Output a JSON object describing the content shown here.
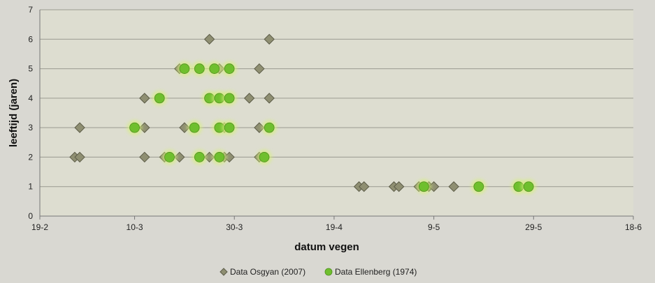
{
  "chart_data": {
    "type": "scatter",
    "title": "",
    "xlabel": "datum vegen",
    "ylabel": "leeftijd (jaren)",
    "x_ticks": [
      "19-2",
      "10-3",
      "30-3",
      "19-4",
      "9-5",
      "29-5",
      "18-6"
    ],
    "xlim_day_of_year": [
      50,
      169
    ],
    "ylim": [
      0,
      7
    ],
    "y_ticks": [
      0,
      1,
      2,
      3,
      4,
      5,
      6,
      7
    ],
    "grid": true,
    "legend_position": "bottom-center",
    "series": [
      {
        "name": "Data Osgyan (2007)",
        "marker": "diamond",
        "color": "#8f8f72",
        "points": [
          {
            "x": "26-2",
            "y": 2
          },
          {
            "x": "27-2",
            "y": 2
          },
          {
            "x": "27-2",
            "y": 3
          },
          {
            "x": "12-3",
            "y": 2
          },
          {
            "x": "12-3",
            "y": 3
          },
          {
            "x": "12-3",
            "y": 4
          },
          {
            "x": "16-3",
            "y": 2
          },
          {
            "x": "19-3",
            "y": 2
          },
          {
            "x": "19-3",
            "y": 5
          },
          {
            "x": "20-3",
            "y": 3
          },
          {
            "x": "25-3",
            "y": 6
          },
          {
            "x": "25-3",
            "y": 2
          },
          {
            "x": "27-3",
            "y": 5
          },
          {
            "x": "27-3",
            "y": 2
          },
          {
            "x": "28-3",
            "y": 2
          },
          {
            "x": "28-3",
            "y": 3
          },
          {
            "x": "29-3",
            "y": 2
          },
          {
            "x": "2-4",
            "y": 4
          },
          {
            "x": "4-4",
            "y": 5
          },
          {
            "x": "4-4",
            "y": 3
          },
          {
            "x": "4-4",
            "y": 2
          },
          {
            "x": "6-4",
            "y": 6
          },
          {
            "x": "6-4",
            "y": 4
          },
          {
            "x": "24-4",
            "y": 1
          },
          {
            "x": "25-4",
            "y": 1
          },
          {
            "x": "1-5",
            "y": 1
          },
          {
            "x": "2-5",
            "y": 1
          },
          {
            "x": "6-5",
            "y": 1
          },
          {
            "x": "7-5",
            "y": 1
          },
          {
            "x": "8-5",
            "y": 1
          },
          {
            "x": "9-5",
            "y": 1
          },
          {
            "x": "13-5",
            "y": 1
          }
        ]
      },
      {
        "name": "Data Ellenberg (1974)",
        "marker": "circle",
        "color": "#6fbf2e",
        "points": [
          {
            "x": "10-3",
            "y": 3
          },
          {
            "x": "15-3",
            "y": 4
          },
          {
            "x": "17-3",
            "y": 2
          },
          {
            "x": "20-3",
            "y": 5
          },
          {
            "x": "22-3",
            "y": 3
          },
          {
            "x": "23-3",
            "y": 5
          },
          {
            "x": "23-3",
            "y": 2
          },
          {
            "x": "25-3",
            "y": 4
          },
          {
            "x": "26-3",
            "y": 5
          },
          {
            "x": "27-3",
            "y": 4
          },
          {
            "x": "27-3",
            "y": 3
          },
          {
            "x": "27-3",
            "y": 2
          },
          {
            "x": "29-3",
            "y": 5
          },
          {
            "x": "29-3",
            "y": 4
          },
          {
            "x": "29-3",
            "y": 3
          },
          {
            "x": "5-4",
            "y": 2
          },
          {
            "x": "6-4",
            "y": 3
          },
          {
            "x": "7-5",
            "y": 1
          },
          {
            "x": "18-5",
            "y": 1
          },
          {
            "x": "26-5",
            "y": 1
          },
          {
            "x": "28-5",
            "y": 1
          }
        ]
      }
    ]
  }
}
